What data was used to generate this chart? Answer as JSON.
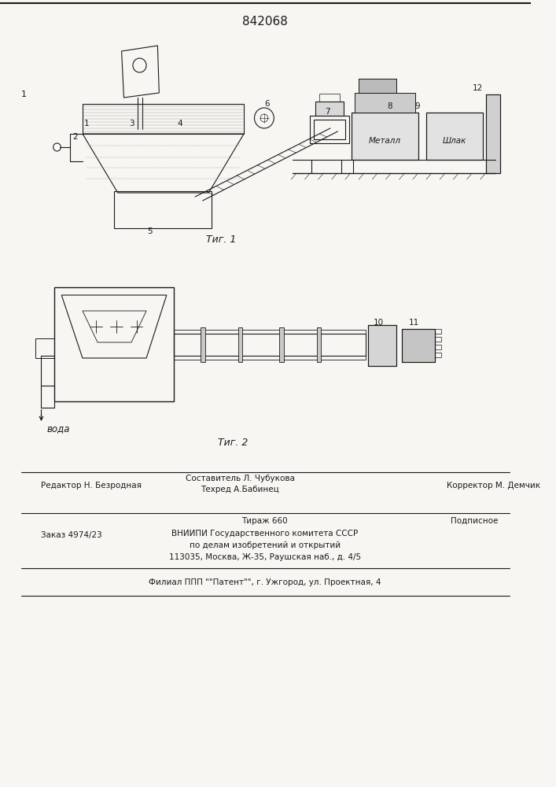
{
  "patent_number": "842068",
  "fig1_caption": "Τиг. 1",
  "fig2_caption": "Τиг. 2",
  "water_label": "вода",
  "metal_label": "Металл",
  "slag_label": "Шлак",
  "footer_editor": "Редактор Н. Безродная",
  "footer_author1": "Составитель Л. Чубукова",
  "footer_author2": "Техред А.Бабинец",
  "footer_corrector": "Корректор М. Демчик",
  "footer_order": "Заказ 4974/23",
  "footer_tirazh": "Тираж 660",
  "footer_podpisnoe": "Подписное",
  "footer_vniip1": "ВНИИПИ Государственного комитета СССР",
  "footer_vniip2": "по делам изобретений и открытий",
  "footer_vniip3": "113035, Москва, Ж-35, Раушская наб., д. 4/5",
  "footer_filial": "Филиал ППП \"\"Патент\"\", г. Ужгород, ул. Проектная, 4",
  "bg_color": "#f8f6f2",
  "line_color": "#1a1a1a"
}
